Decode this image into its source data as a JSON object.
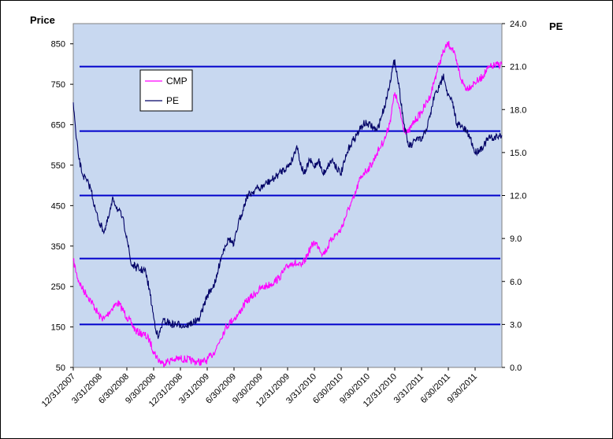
{
  "chart_data": {
    "type": "line",
    "plot_background": "#c8d8f0",
    "left_axis": {
      "title": "Price",
      "range": [
        50,
        900
      ],
      "ticks": [
        50,
        150,
        250,
        350,
        450,
        550,
        650,
        750,
        850
      ]
    },
    "right_axis": {
      "title": "PE",
      "range": [
        0.0,
        24.0
      ],
      "ticks": [
        "0.0",
        "3.0",
        "6.0",
        "9.0",
        "12.0",
        "15.0",
        "18.0",
        "21.0",
        "24.0"
      ]
    },
    "x_axis": {
      "range": [
        "2007-12-31",
        "2011-12-31"
      ],
      "tick_labels": [
        "12/31/2007",
        "3/31/2008",
        "6/30/2008",
        "9/30/2008",
        "12/31/2008",
        "3/31/2009",
        "6/30/2009",
        "9/30/2009",
        "12/31/2009",
        "3/31/2010",
        "6/30/2010",
        "9/30/2010",
        "12/31/2010",
        "3/31/2011",
        "6/30/2011",
        "9/30/2011"
      ]
    },
    "legend": {
      "placement": "top-left",
      "entries": [
        {
          "name": "CMP",
          "color": "#ff00ff"
        },
        {
          "name": "PE",
          "color": "#000066"
        }
      ]
    },
    "pe_bands": {
      "color": "#0000cc",
      "axis": "PE",
      "values": [
        3.0,
        7.6,
        12.0,
        16.5,
        21.0
      ]
    },
    "series": [
      {
        "name": "CMP",
        "color": "#ff00ff",
        "axis": "Price",
        "points": [
          [
            "2007-12-31",
            315
          ],
          [
            "2008-01-15",
            270
          ],
          [
            "2008-01-31",
            245
          ],
          [
            "2008-02-15",
            230
          ],
          [
            "2008-02-29",
            215
          ],
          [
            "2008-03-15",
            195
          ],
          [
            "2008-03-31",
            175
          ],
          [
            "2008-04-15",
            170
          ],
          [
            "2008-04-30",
            185
          ],
          [
            "2008-05-15",
            200
          ],
          [
            "2008-05-31",
            210
          ],
          [
            "2008-06-15",
            195
          ],
          [
            "2008-06-30",
            175
          ],
          [
            "2008-07-15",
            160
          ],
          [
            "2008-07-31",
            140
          ],
          [
            "2008-08-15",
            135
          ],
          [
            "2008-08-31",
            130
          ],
          [
            "2008-09-15",
            118
          ],
          [
            "2008-09-30",
            90
          ],
          [
            "2008-10-15",
            70
          ],
          [
            "2008-10-31",
            60
          ],
          [
            "2008-11-15",
            65
          ],
          [
            "2008-11-30",
            68
          ],
          [
            "2008-12-15",
            70
          ],
          [
            "2008-12-31",
            72
          ],
          [
            "2009-01-15",
            70
          ],
          [
            "2009-01-31",
            68
          ],
          [
            "2009-02-15",
            65
          ],
          [
            "2009-02-28",
            64
          ],
          [
            "2009-03-15",
            63
          ],
          [
            "2009-03-31",
            68
          ],
          [
            "2009-04-15",
            80
          ],
          [
            "2009-04-30",
            95
          ],
          [
            "2009-05-15",
            120
          ],
          [
            "2009-05-31",
            145
          ],
          [
            "2009-06-15",
            160
          ],
          [
            "2009-06-30",
            170
          ],
          [
            "2009-07-15",
            180
          ],
          [
            "2009-07-31",
            200
          ],
          [
            "2009-08-15",
            215
          ],
          [
            "2009-08-31",
            225
          ],
          [
            "2009-09-15",
            235
          ],
          [
            "2009-09-30",
            245
          ],
          [
            "2009-10-15",
            250
          ],
          [
            "2009-10-31",
            255
          ],
          [
            "2009-11-15",
            262
          ],
          [
            "2009-11-30",
            270
          ],
          [
            "2009-12-15",
            285
          ],
          [
            "2009-12-31",
            300
          ],
          [
            "2010-01-15",
            310
          ],
          [
            "2010-01-31",
            305
          ],
          [
            "2010-02-15",
            300
          ],
          [
            "2010-02-28",
            315
          ],
          [
            "2010-03-15",
            340
          ],
          [
            "2010-03-31",
            360
          ],
          [
            "2010-04-15",
            350
          ],
          [
            "2010-04-30",
            330
          ],
          [
            "2010-05-15",
            345
          ],
          [
            "2010-05-31",
            370
          ],
          [
            "2010-06-15",
            380
          ],
          [
            "2010-06-30",
            390
          ],
          [
            "2010-07-15",
            420
          ],
          [
            "2010-07-31",
            450
          ],
          [
            "2010-08-15",
            470
          ],
          [
            "2010-08-31",
            510
          ],
          [
            "2010-09-15",
            530
          ],
          [
            "2010-09-30",
            540
          ],
          [
            "2010-10-15",
            555
          ],
          [
            "2010-10-31",
            580
          ],
          [
            "2010-11-15",
            600
          ],
          [
            "2010-11-30",
            620
          ],
          [
            "2010-12-15",
            660
          ],
          [
            "2010-12-31",
            730
          ],
          [
            "2011-01-15",
            690
          ],
          [
            "2011-01-31",
            640
          ],
          [
            "2011-02-15",
            630
          ],
          [
            "2011-02-28",
            650
          ],
          [
            "2011-03-15",
            665
          ],
          [
            "2011-03-31",
            680
          ],
          [
            "2011-04-15",
            700
          ],
          [
            "2011-04-30",
            720
          ],
          [
            "2011-05-15",
            760
          ],
          [
            "2011-05-31",
            800
          ],
          [
            "2011-06-15",
            830
          ],
          [
            "2011-06-30",
            850
          ],
          [
            "2011-07-15",
            840
          ],
          [
            "2011-07-31",
            800
          ],
          [
            "2011-08-15",
            760
          ],
          [
            "2011-08-31",
            740
          ],
          [
            "2011-09-15",
            745
          ],
          [
            "2011-09-30",
            755
          ],
          [
            "2011-10-15",
            760
          ],
          [
            "2011-10-31",
            775
          ],
          [
            "2011-11-15",
            790
          ],
          [
            "2011-11-30",
            795
          ],
          [
            "2011-12-31",
            800
          ]
        ]
      },
      {
        "name": "PE",
        "color": "#000066",
        "axis": "PE",
        "points": [
          [
            "2007-12-31",
            18.5
          ],
          [
            "2008-01-10",
            16.0
          ],
          [
            "2008-01-20",
            14.5
          ],
          [
            "2008-01-31",
            13.5
          ],
          [
            "2008-02-15",
            13.0
          ],
          [
            "2008-02-29",
            12.5
          ],
          [
            "2008-03-15",
            11.0
          ],
          [
            "2008-03-31",
            10.0
          ],
          [
            "2008-04-15",
            9.5
          ],
          [
            "2008-04-30",
            10.5
          ],
          [
            "2008-05-15",
            11.8
          ],
          [
            "2008-05-31",
            11.0
          ],
          [
            "2008-06-15",
            10.5
          ],
          [
            "2008-06-30",
            9.2
          ],
          [
            "2008-07-15",
            7.2
          ],
          [
            "2008-07-31",
            7.0
          ],
          [
            "2008-08-15",
            6.8
          ],
          [
            "2008-08-31",
            6.8
          ],
          [
            "2008-09-15",
            5.5
          ],
          [
            "2008-09-30",
            3.5
          ],
          [
            "2008-10-15",
            2.0
          ],
          [
            "2008-10-31",
            3.2
          ],
          [
            "2008-11-15",
            3.2
          ],
          [
            "2008-11-30",
            3.0
          ],
          [
            "2008-12-15",
            3.0
          ],
          [
            "2008-12-31",
            3.0
          ],
          [
            "2009-01-15",
            2.9
          ],
          [
            "2009-01-31",
            3.0
          ],
          [
            "2009-02-15",
            3.2
          ],
          [
            "2009-02-28",
            3.2
          ],
          [
            "2009-03-15",
            4.0
          ],
          [
            "2009-03-31",
            5.0
          ],
          [
            "2009-04-15",
            5.5
          ],
          [
            "2009-04-30",
            6.0
          ],
          [
            "2009-05-15",
            7.5
          ],
          [
            "2009-05-31",
            8.5
          ],
          [
            "2009-06-15",
            9.0
          ],
          [
            "2009-06-30",
            8.5
          ],
          [
            "2009-07-15",
            10.0
          ],
          [
            "2009-07-31",
            11.0
          ],
          [
            "2009-08-15",
            12.0
          ],
          [
            "2009-08-31",
            12.2
          ],
          [
            "2009-09-15",
            12.5
          ],
          [
            "2009-09-30",
            12.5
          ],
          [
            "2009-10-15",
            12.8
          ],
          [
            "2009-10-31",
            13.0
          ],
          [
            "2009-11-15",
            13.2
          ],
          [
            "2009-11-30",
            13.5
          ],
          [
            "2009-12-15",
            13.8
          ],
          [
            "2009-12-31",
            14.0
          ],
          [
            "2010-01-15",
            14.5
          ],
          [
            "2010-01-31",
            15.5
          ],
          [
            "2010-02-15",
            14.0
          ],
          [
            "2010-02-28",
            13.5
          ],
          [
            "2010-03-15",
            14.5
          ],
          [
            "2010-03-31",
            14.0
          ],
          [
            "2010-04-15",
            14.5
          ],
          [
            "2010-04-30",
            13.5
          ],
          [
            "2010-05-15",
            14.0
          ],
          [
            "2010-05-31",
            14.5
          ],
          [
            "2010-06-15",
            14.0
          ],
          [
            "2010-06-30",
            13.5
          ],
          [
            "2010-07-15",
            14.5
          ],
          [
            "2010-07-31",
            15.5
          ],
          [
            "2010-08-15",
            16.0
          ],
          [
            "2010-08-31",
            16.5
          ],
          [
            "2010-09-15",
            17.0
          ],
          [
            "2010-09-30",
            17.0
          ],
          [
            "2010-10-15",
            16.8
          ],
          [
            "2010-10-31",
            16.5
          ],
          [
            "2010-11-15",
            17.5
          ],
          [
            "2010-11-30",
            18.5
          ],
          [
            "2010-12-15",
            20.0
          ],
          [
            "2010-12-31",
            21.5
          ],
          [
            "2011-01-15",
            19.5
          ],
          [
            "2011-01-31",
            17.0
          ],
          [
            "2011-02-15",
            15.5
          ],
          [
            "2011-02-28",
            15.5
          ],
          [
            "2011-03-15",
            16.0
          ],
          [
            "2011-03-31",
            15.8
          ],
          [
            "2011-04-15",
            16.5
          ],
          [
            "2011-04-30",
            17.5
          ],
          [
            "2011-05-15",
            19.0
          ],
          [
            "2011-05-31",
            19.5
          ],
          [
            "2011-06-15",
            20.5
          ],
          [
            "2011-06-30",
            19.0
          ],
          [
            "2011-07-15",
            18.5
          ],
          [
            "2011-07-31",
            17.0
          ],
          [
            "2011-08-15",
            16.8
          ],
          [
            "2011-08-31",
            16.5
          ],
          [
            "2011-09-15",
            16.0
          ],
          [
            "2011-09-30",
            15.0
          ],
          [
            "2011-10-15",
            15.2
          ],
          [
            "2011-10-31",
            15.5
          ],
          [
            "2011-11-15",
            16.0
          ],
          [
            "2011-11-30",
            16.0
          ],
          [
            "2011-12-31",
            16.2
          ]
        ]
      }
    ]
  }
}
